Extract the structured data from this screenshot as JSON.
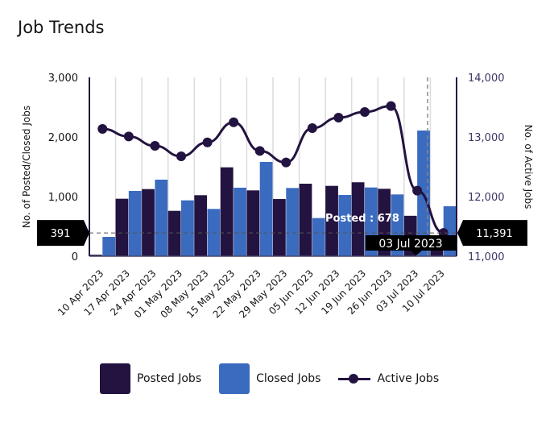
{
  "title": "Job Trends",
  "chart_data": {
    "type": "bar+line",
    "categories": [
      "10 Apr 2023",
      "17 Apr 2023",
      "24 Apr 2023",
      "01 May 2023",
      "08 May 2023",
      "15 May 2023",
      "22 May 2023",
      "29 May 2023",
      "05 Jun 2023",
      "12 Jun 2023",
      "19 Jun 2023",
      "26 Jun 2023",
      "03 Jul 2023",
      "10 Jul 2023"
    ],
    "series": [
      {
        "name": "Posted Jobs",
        "type": "bar",
        "axis": "left",
        "color": "#231340",
        "values": [
          25,
          964,
          1126,
          761,
          1023,
          1491,
          1104,
          959,
          1216,
          1180,
          1240,
          1131,
          678,
          126
        ]
      },
      {
        "name": "Closed Jobs",
        "type": "bar",
        "axis": "left",
        "color": "#3a6bbf",
        "values": [
          324,
          1095,
          1284,
          937,
          793,
          1149,
          1581,
          1144,
          640,
          1027,
          1153,
          1036,
          2108,
          838
        ]
      },
      {
        "name": "Active Jobs",
        "type": "line",
        "axis": "right",
        "color": "#231340",
        "values": [
          13135,
          13009,
          12851,
          12676,
          12909,
          13247,
          12766,
          12572,
          13149,
          13324,
          13419,
          13518,
          12099,
          11391
        ]
      }
    ],
    "ylabel": "No. of Posted/Closed Jobs",
    "y2label": "No. of Active Jobs",
    "ylim": [
      0,
      3000
    ],
    "y2lim": [
      11000,
      14000
    ],
    "yticks": [
      "0",
      "1,000",
      "2,000",
      "3,000"
    ],
    "y2ticks": [
      "11,000",
      "12,000",
      "13,000",
      "14,000"
    ],
    "grid": "vertical",
    "legend": "bottom",
    "crosshair": {
      "left_readout": "391",
      "right_readout": "11,391",
      "x_readout": "03 Jul 2023"
    },
    "tooltip": {
      "text": "Posted : 678"
    }
  }
}
